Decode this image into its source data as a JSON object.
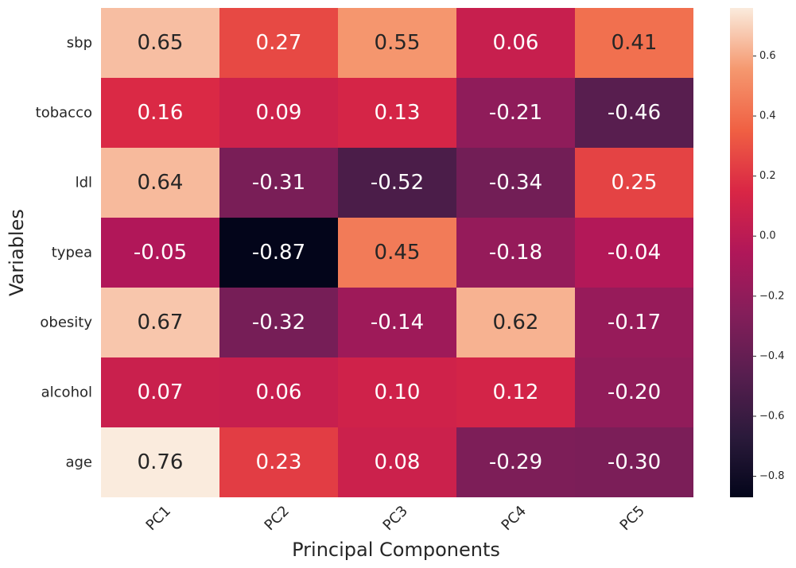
{
  "chart_data": {
    "type": "heatmap",
    "title": "",
    "xlabel": "Principal Components",
    "ylabel": "Variables",
    "columns": [
      "PC1",
      "PC2",
      "PC3",
      "PC4",
      "PC5"
    ],
    "rows": [
      "sbp",
      "tobacco",
      "ldl",
      "typea",
      "obesity",
      "alcohol",
      "age"
    ],
    "values": [
      [
        0.65,
        0.27,
        0.55,
        0.06,
        0.41
      ],
      [
        0.16,
        0.09,
        0.13,
        -0.21,
        -0.46
      ],
      [
        0.64,
        -0.31,
        -0.52,
        -0.34,
        0.25
      ],
      [
        -0.05,
        -0.87,
        0.45,
        -0.18,
        -0.04
      ],
      [
        0.67,
        -0.32,
        -0.14,
        0.62,
        -0.17
      ],
      [
        0.07,
        0.06,
        0.1,
        0.12,
        -0.2
      ],
      [
        0.76,
        0.23,
        0.08,
        -0.29,
        -0.3
      ]
    ],
    "colormap": "rocket",
    "vmin": -0.87,
    "vmax": 0.76,
    "colorbar_ticks": [
      0.6,
      0.4,
      0.2,
      0.0,
      -0.2,
      -0.4,
      -0.6,
      -0.8
    ],
    "colorbar_tick_labels": [
      "0.6",
      "0.4",
      "0.2",
      "0.0",
      "−0.2",
      "−0.4",
      "−0.6",
      "−0.8"
    ],
    "annotation_format": "0.00"
  }
}
